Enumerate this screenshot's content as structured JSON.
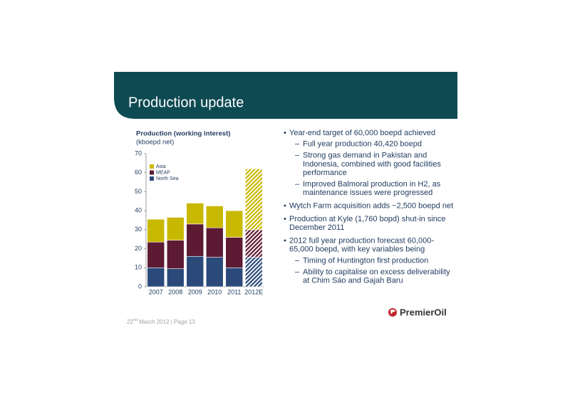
{
  "slide": {
    "title": "Production update",
    "footer": {
      "day": "22",
      "suffix": "nd",
      "rest": " March 2012 | Page 13"
    },
    "logo": "PremierOil",
    "bullets": [
      {
        "lines": [
          "Year-end target of 60,000 boepd achieved"
        ],
        "sub": [
          {
            "lines": [
              "Full year production 40,420 boepd"
            ]
          },
          {
            "lines": [
              "Strong gas demand in Pakistan and",
              "Indonesia, combined with good facilities",
              "performance"
            ]
          },
          {
            "lines": [
              "Improved Balmoral production in H2, as",
              "maintenance issues were progressed"
            ]
          }
        ]
      },
      {
        "lines": [
          "Wytch Farm acquisition adds ~2,500 boepd net"
        ],
        "sub": []
      },
      {
        "lines": [
          "Production at Kyle (1,760 bopd) shut-in since",
          "December 2011"
        ],
        "sub": []
      },
      {
        "lines": [
          "2012 full year production forecast 60,000-",
          "65,000 boepd, with key variables being"
        ],
        "sub": [
          {
            "lines": [
              "Timing of Huntington first production"
            ]
          },
          {
            "lines": [
              "Ability to capitalise on excess deliverability",
              "at Chim Sáo and Gajah Baru"
            ]
          }
        ]
      }
    ]
  },
  "chart_data": {
    "type": "stacked_bar",
    "title": "Production (working interest)",
    "subtitle": "(kboepd net)",
    "categories": [
      "2007",
      "2008",
      "2009",
      "2010",
      "2011",
      "2012E"
    ],
    "series": [
      {
        "name": "North Sea",
        "color": "#2b4a7a",
        "values": [
          10,
          9.5,
          16,
          15.5,
          10,
          15.5
        ]
      },
      {
        "name": "MEAP",
        "color": "#5c1a33",
        "values": [
          13.5,
          15,
          17,
          15.5,
          16,
          14.5
        ]
      },
      {
        "name": "Asia",
        "color": "#c8b800",
        "values": [
          12,
          12,
          11,
          11.5,
          14,
          32
        ]
      }
    ],
    "ylim": [
      0,
      70
    ],
    "yticks": [
      0,
      10,
      20,
      30,
      40,
      50,
      60,
      70
    ]
  }
}
